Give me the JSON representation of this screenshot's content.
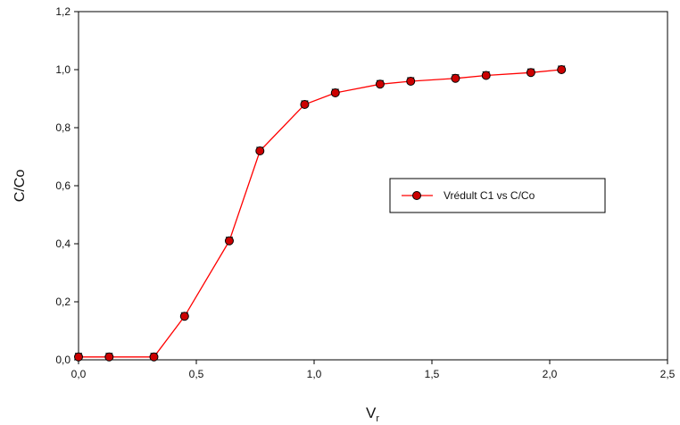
{
  "chart_data": {
    "type": "line",
    "xlabel": "V",
    "xlabel_sub": "r",
    "ylabel": "C/Co",
    "xlim": [
      0,
      2.5
    ],
    "ylim": [
      0,
      1.2
    ],
    "x_ticks": [
      0,
      0.5,
      1.0,
      1.5,
      2.0,
      2.5
    ],
    "x_tick_labels": [
      "0,0",
      "0,5",
      "1,0",
      "1,5",
      "2,0",
      "2,5"
    ],
    "y_ticks": [
      0,
      0.2,
      0.4,
      0.6,
      0.8,
      1.0,
      1.2
    ],
    "y_tick_labels": [
      "0,0",
      "0,2",
      "0,4",
      "0,6",
      "0,8",
      "1,0",
      "1,2"
    ],
    "grid": false,
    "legend_position": "center-right",
    "series": [
      {
        "name": "Vrédult C1 vs C/Co",
        "color": "#ff0000",
        "marker_color": "#cc0000",
        "x": [
          0.0,
          0.13,
          0.32,
          0.45,
          0.64,
          0.77,
          0.96,
          1.09,
          1.28,
          1.41,
          1.6,
          1.73,
          1.92,
          2.05
        ],
        "y": [
          0.01,
          0.01,
          0.01,
          0.15,
          0.41,
          0.72,
          0.88,
          0.92,
          0.95,
          0.96,
          0.97,
          0.98,
          0.99,
          1.0
        ]
      }
    ]
  }
}
